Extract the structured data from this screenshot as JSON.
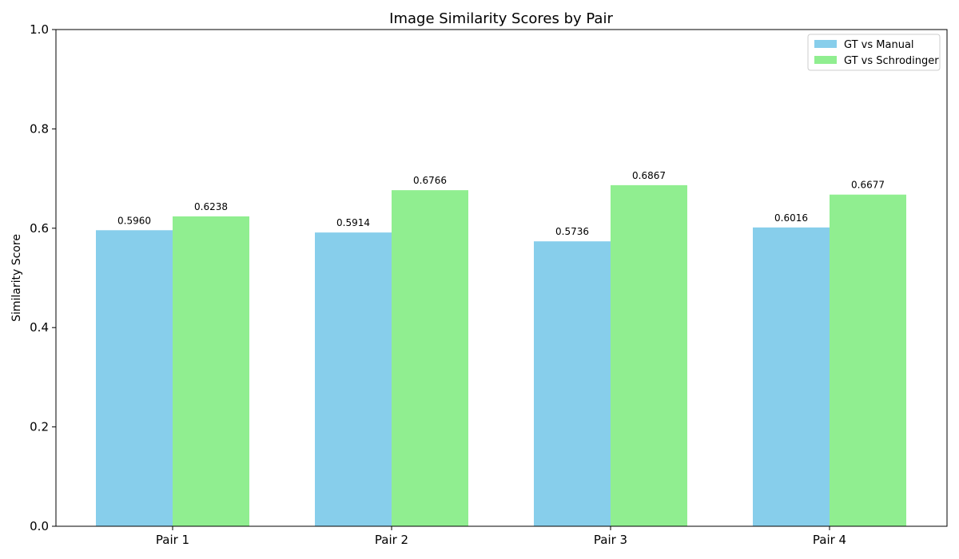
{
  "chart_data": {
    "type": "bar",
    "title": "Image Similarity Scores by Pair",
    "xlabel": "",
    "ylabel": "Similarity Score",
    "ylim": [
      0,
      1
    ],
    "yticks": [
      "0.0",
      "0.2",
      "0.4",
      "0.6",
      "0.8",
      "1.0"
    ],
    "categories": [
      "Pair 1",
      "Pair 2",
      "Pair 3",
      "Pair 4"
    ],
    "series": [
      {
        "name": "GT vs Manual",
        "color": "#87CEEB",
        "values": [
          0.596,
          0.5914,
          0.5736,
          0.6016
        ],
        "labels": [
          "0.5960",
          "0.5914",
          "0.5736",
          "0.6016"
        ]
      },
      {
        "name": "GT vs Schrodinger",
        "color": "#90EE90",
        "values": [
          0.6238,
          0.6766,
          0.6867,
          0.6677
        ],
        "labels": [
          "0.6238",
          "0.6766",
          "0.6867",
          "0.6677"
        ]
      }
    ],
    "grid": false,
    "legend_position": "top-right"
  }
}
